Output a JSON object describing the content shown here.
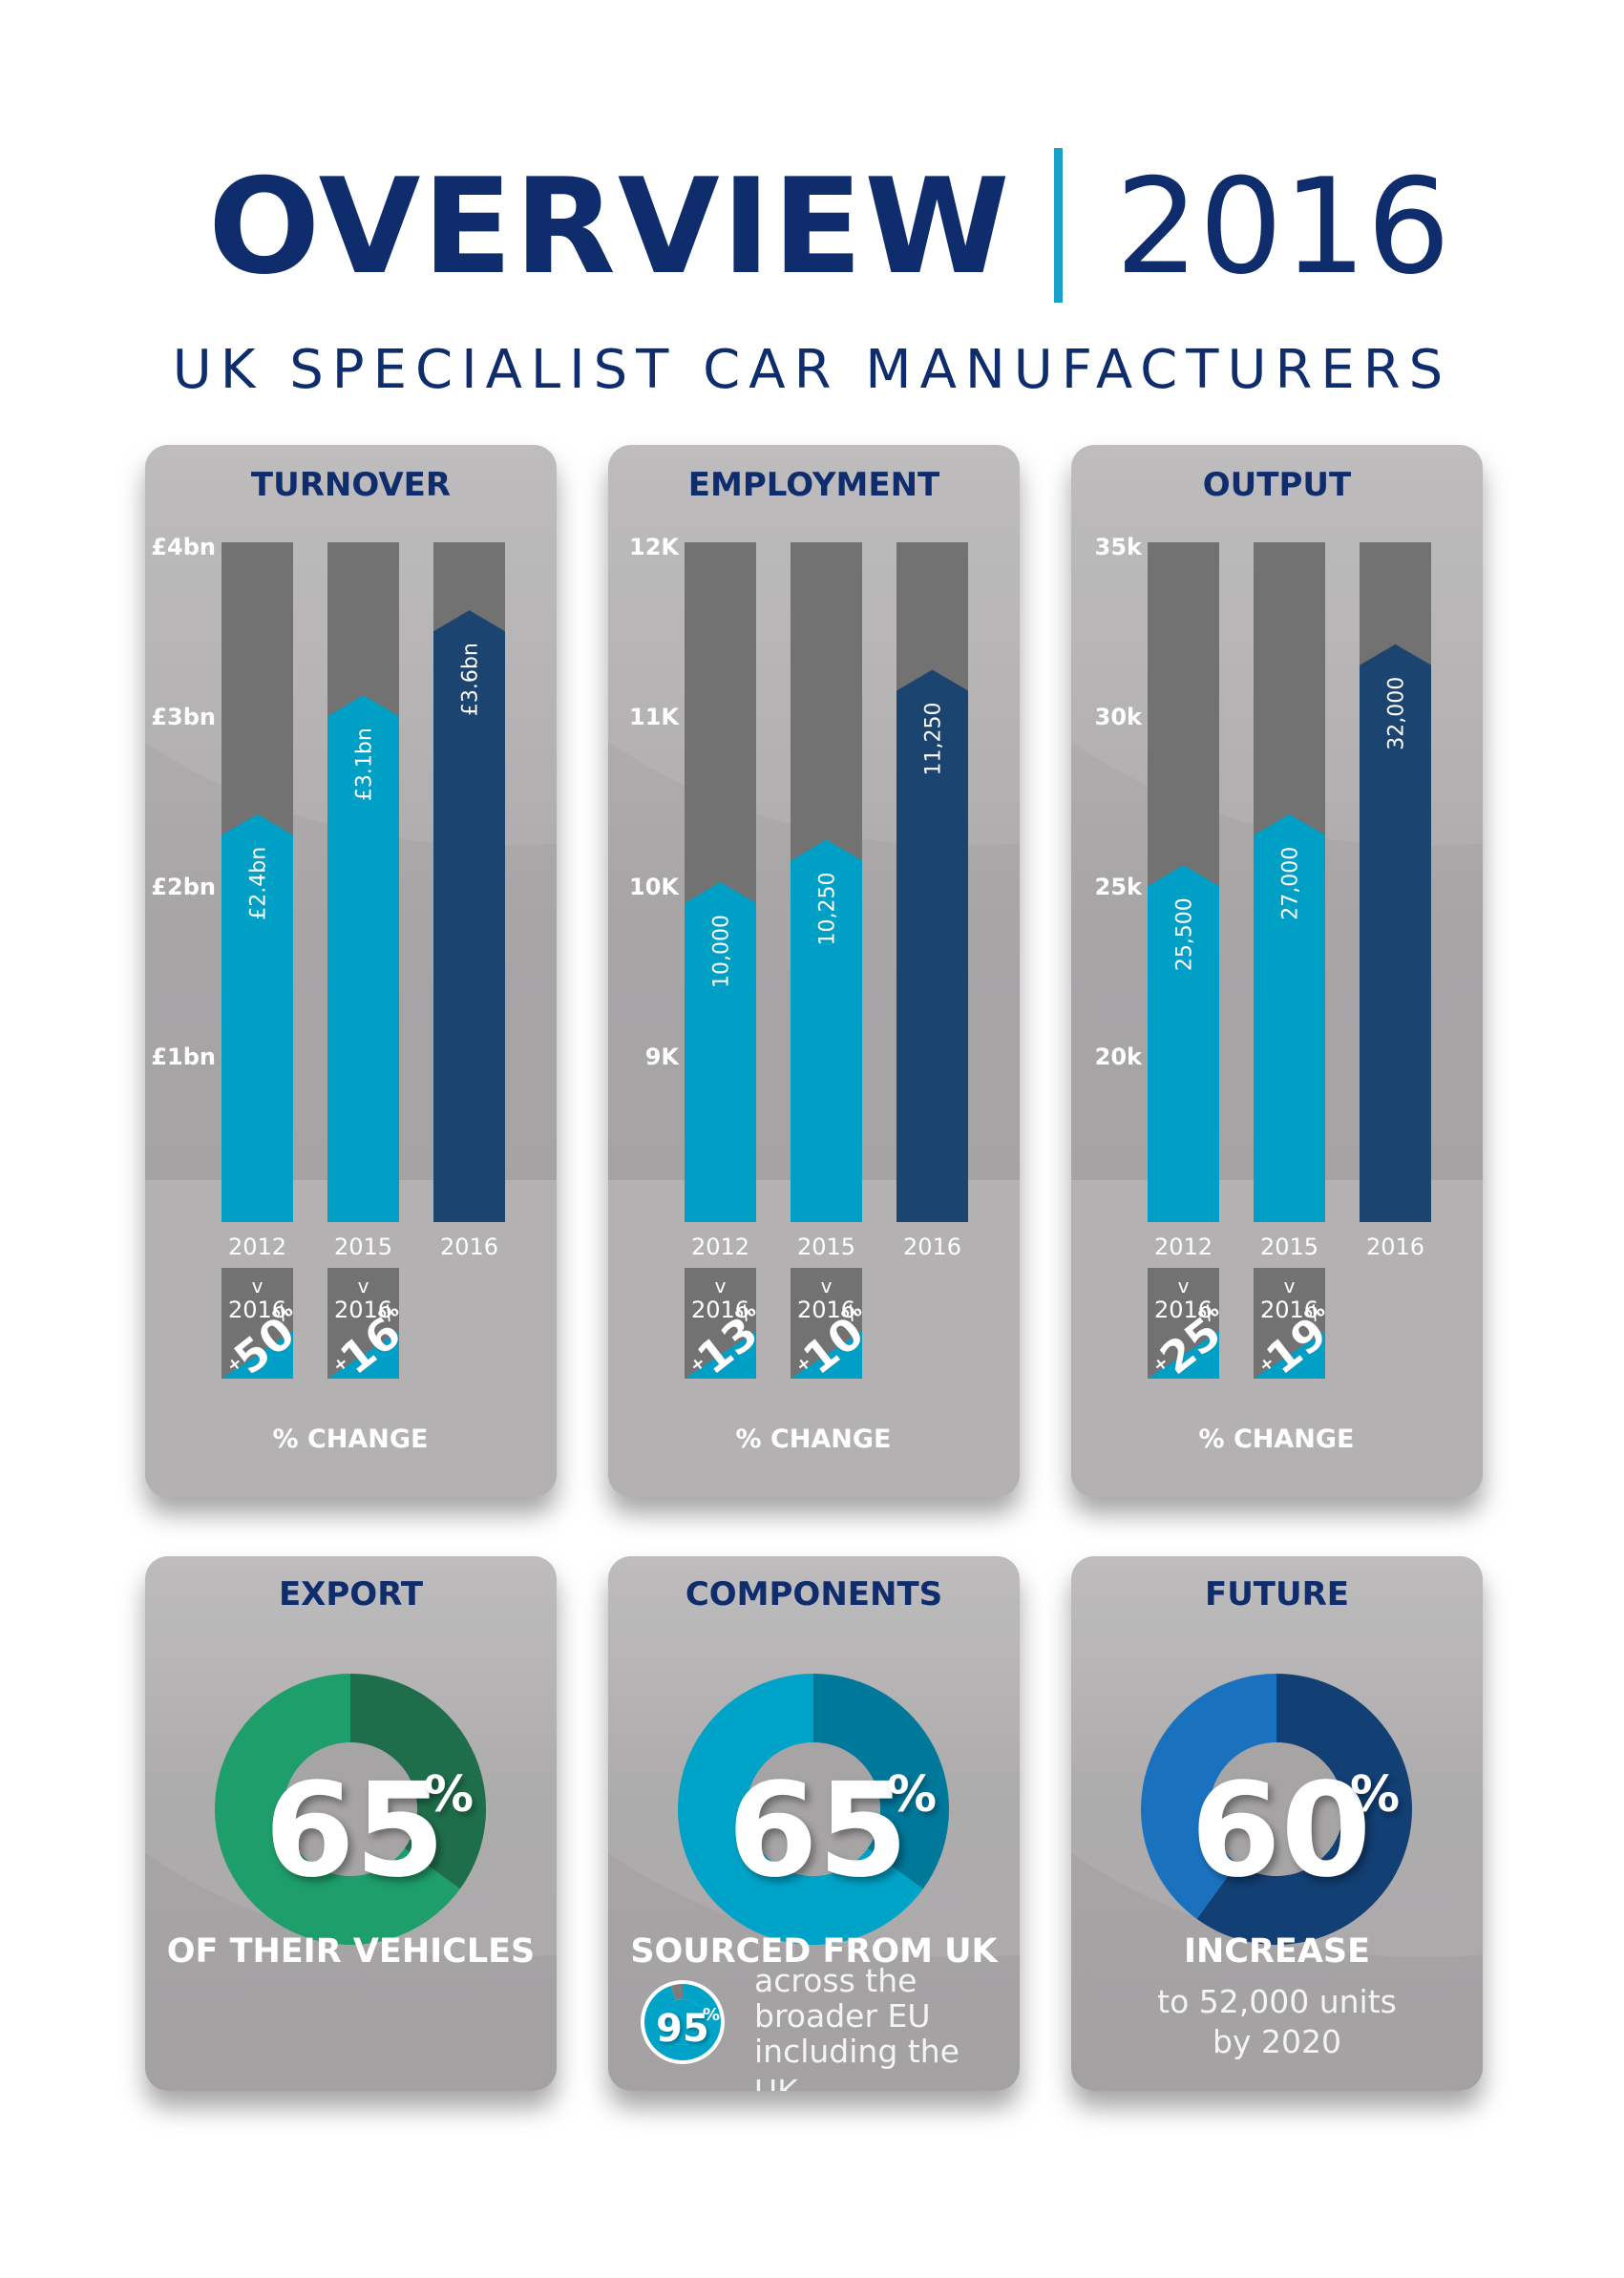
{
  "header": {
    "title": "OVERVIEW",
    "year": "2016",
    "subtitle": "UK SPECIALIST CAR MANUFACTURERS"
  },
  "colors": {
    "navy": "#0f2d6c",
    "accent": "#1aa1c9",
    "bar_light": "#00a0c6",
    "bar_dark": "#1c4470",
    "bar_bg": "#737273",
    "export_green": "#1e9e6a",
    "export_dark": "#1f6e4b",
    "comp_teal": "#00a3c8",
    "comp_dark": "#00789a",
    "future_blue": "#1a72bf",
    "future_dark": "#123f74"
  },
  "chart_data": [
    {
      "type": "bar",
      "title": "TURNOVER",
      "categories": [
        "2012",
        "2015",
        "2016"
      ],
      "values": [
        2.4,
        3.1,
        3.6
      ],
      "value_labels": [
        "£2.4bn",
        "£3.1bn",
        "£3.6bn"
      ],
      "ylim": [
        0,
        4
      ],
      "yticks": [
        1,
        2,
        3,
        4
      ],
      "ytick_labels": [
        "£1bn",
        "£2bn",
        "£3bn",
        "£4bn"
      ],
      "changes": [
        {
          "top": "v",
          "bottom": "2016",
          "plus": "+",
          "value": "50",
          "unit": "%"
        },
        {
          "top": "v",
          "bottom": "2016",
          "plus": "+",
          "value": "16",
          "unit": "%"
        }
      ],
      "change_label": "% CHANGE"
    },
    {
      "type": "bar",
      "title": "EMPLOYMENT",
      "categories": [
        "2012",
        "2015",
        "2016"
      ],
      "values": [
        10000,
        10250,
        11250
      ],
      "value_labels": [
        "10,000",
        "10,250",
        "11,250"
      ],
      "ylim": [
        8000,
        12000
      ],
      "yticks": [
        9000,
        10000,
        11000,
        12000
      ],
      "ytick_labels": [
        "9K",
        "10K",
        "11K",
        "12K"
      ],
      "changes": [
        {
          "top": "v",
          "bottom": "2016",
          "plus": "+",
          "value": "13",
          "unit": "%"
        },
        {
          "top": "v",
          "bottom": "2016",
          "plus": "+",
          "value": "10",
          "unit": "%"
        }
      ],
      "change_label": "% CHANGE"
    },
    {
      "type": "bar",
      "title": "OUTPUT",
      "categories": [
        "2012",
        "2015",
        "2016"
      ],
      "values": [
        25500,
        27000,
        32000
      ],
      "value_labels": [
        "25,500",
        "27,000",
        "32,000"
      ],
      "ylim": [
        15000,
        35000
      ],
      "yticks": [
        20000,
        25000,
        30000,
        35000
      ],
      "ytick_labels": [
        "20k",
        "25k",
        "30k",
        "35k"
      ],
      "changes": [
        {
          "top": "v",
          "bottom": "2016",
          "plus": "+",
          "value": "25",
          "unit": "%"
        },
        {
          "top": "v",
          "bottom": "2016",
          "plus": "+",
          "value": "19",
          "unit": "%"
        }
      ],
      "change_label": "% CHANGE"
    },
    {
      "type": "pie",
      "title": "EXPORT",
      "value": 65,
      "number": "65",
      "unit": "%",
      "caption": "OF THEIR VEHICLES"
    },
    {
      "type": "pie",
      "title": "COMPONENTS",
      "value": 65,
      "number": "65",
      "unit": "%",
      "caption": "SOURCED FROM UK",
      "secondary": {
        "value": 95,
        "number": "95",
        "unit": "%",
        "lines": [
          "across the",
          "broader EU",
          "including the UK"
        ]
      }
    },
    {
      "type": "pie",
      "title": "FUTURE",
      "value": 60,
      "number": "60",
      "unit": "%",
      "caption": "INCREASE",
      "sub_lines": [
        "to 52,000 units",
        "by 2020"
      ]
    }
  ]
}
